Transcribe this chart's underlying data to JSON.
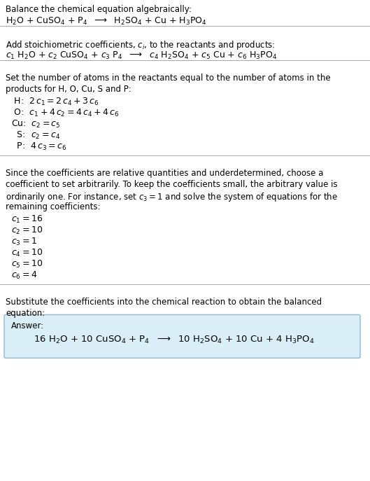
{
  "title_line1": "Balance the chemical equation algebraically:",
  "eq_line": "H$_2$O + CuSO$_4$ + P$_4$  $\\longrightarrow$  H$_2$SO$_4$ + Cu + H$_3$PO$_4$",
  "section2_intro": "Add stoichiometric coefficients, $c_i$, to the reactants and products:",
  "eq_line2": "$c_1$ H$_2$O + $c_2$ CuSO$_4$ + $c_3$ P$_4$  $\\longrightarrow$  $c_4$ H$_2$SO$_4$ + $c_5$ Cu + $c_6$ H$_3$PO$_4$",
  "section3_intro1": "Set the number of atoms in the reactants equal to the number of atoms in the",
  "section3_intro2": "products for H, O, Cu, S and P:",
  "equations": [
    " H:  $2\\,c_1 = 2\\,c_4 + 3\\,c_6$",
    " O:  $c_1 + 4\\,c_2 = 4\\,c_4 + 4\\,c_6$",
    "Cu:  $c_2 = c_5$",
    "  S:  $c_2 = c_4$",
    "  P:  $4\\,c_3 = c_6$"
  ],
  "section4_intro1": "Since the coefficients are relative quantities and underdetermined, choose a",
  "section4_intro2": "coefficient to set arbitrarily. To keep the coefficients small, the arbitrary value is",
  "section4_intro3": "ordinarily one. For instance, set $c_3 = 1$ and solve the system of equations for the",
  "section4_intro4": "remaining coefficients:",
  "coeff_lines": [
    "$c_1 = 16$",
    "$c_2 = 10$",
    "$c_3 = 1$",
    "$c_4 = 10$",
    "$c_5 = 10$",
    "$c_6 = 4$"
  ],
  "section5_intro1": "Substitute the coefficients into the chemical reaction to obtain the balanced",
  "section5_intro2": "equation:",
  "answer_label": "Answer:",
  "answer_eq": "16 H$_2$O + 10 CuSO$_4$ + P$_4$  $\\longrightarrow$  10 H$_2$SO$_4$ + 10 Cu + 4 H$_3$PO$_4$",
  "bg_color": "#ffffff",
  "text_color": "#000000",
  "answer_box_facecolor": "#daeef8",
  "answer_box_edgecolor": "#88bbdd",
  "fontsize": 8.5,
  "fontsize_eq": 9.0
}
